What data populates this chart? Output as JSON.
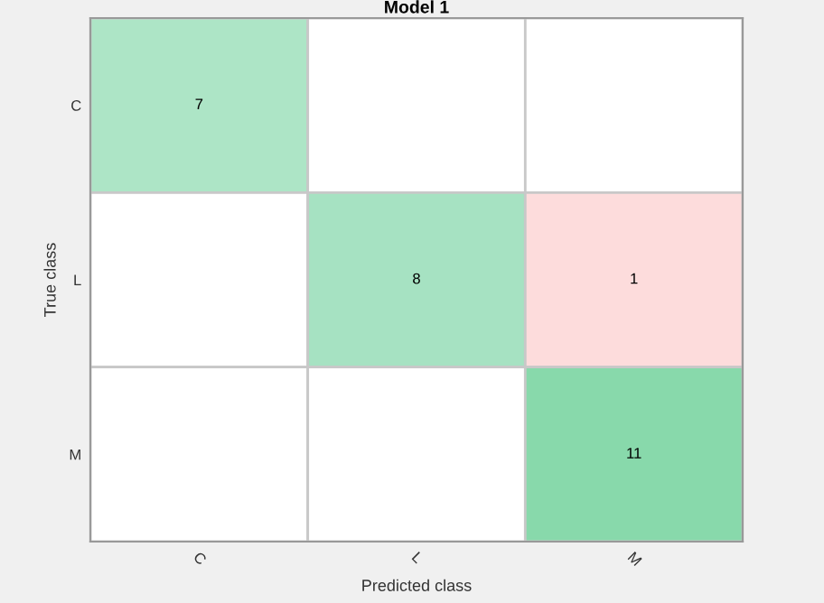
{
  "chart_data": {
    "type": "heatmap",
    "title": "Model 1",
    "data_labels": true,
    "xlabel": "Predicted class",
    "ylabel": "True class",
    "categories": [
      "C",
      "L",
      "M"
    ],
    "y_categories": [
      "C",
      "L",
      "M"
    ],
    "cells": [
      [
        7,
        null,
        null
      ],
      [
        null,
        8,
        1
      ],
      [
        null,
        null,
        11
      ]
    ],
    "colors": [
      [
        "#ade5c6",
        null,
        null
      ],
      [
        null,
        "#a6e2c2",
        "#fddcdc"
      ],
      [
        null,
        null,
        "#88d9ab"
      ]
    ]
  }
}
